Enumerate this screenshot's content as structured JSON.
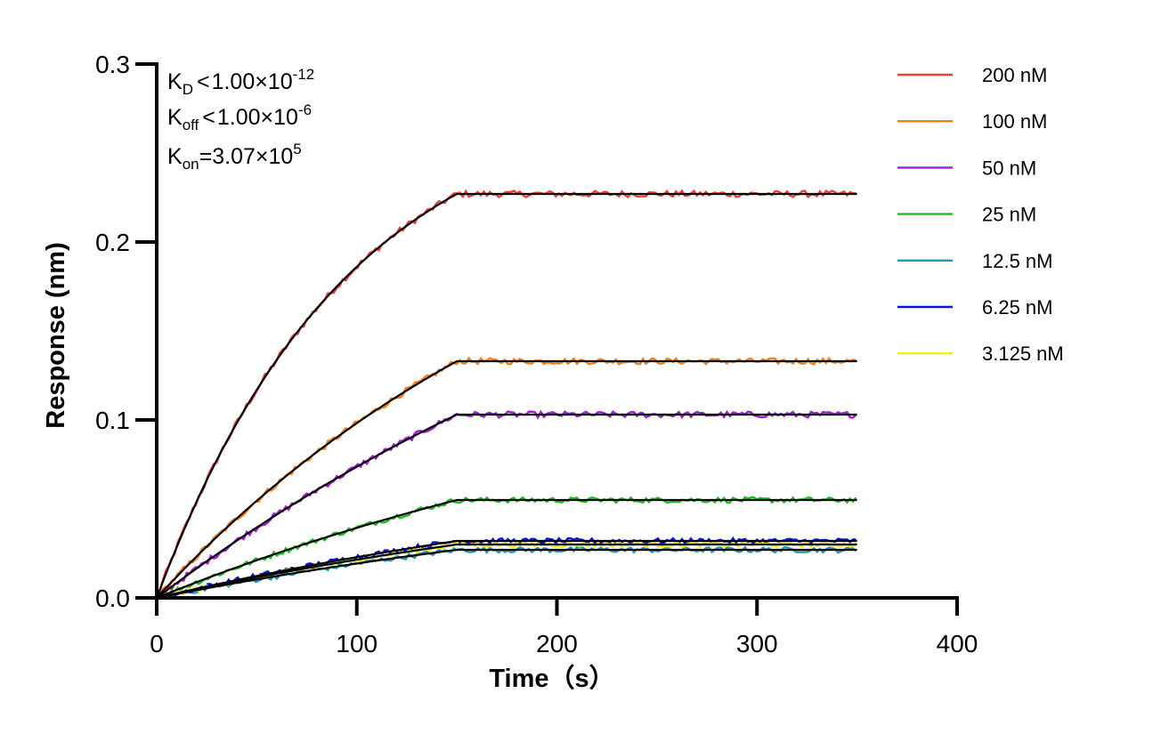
{
  "chart_data": {
    "type": "line",
    "xlabel": "Time（s）",
    "ylabel": "Response (nm)",
    "xlim": [
      0,
      400
    ],
    "ylim": [
      0,
      0.3
    ],
    "x_ticks": [
      "0",
      "100",
      "200",
      "300",
      "400"
    ],
    "y_ticks": [
      "0.0",
      "0.1",
      "0.2",
      "0.3"
    ],
    "grid": false,
    "legend_position": "top-right",
    "annotations": {
      "kd": {
        "base": "K",
        "sub": "D",
        "rel": "<",
        "mantissa": "1.00×10",
        "exp": "-12"
      },
      "koff": {
        "base": "K",
        "sub": "off",
        "rel": "<",
        "mantissa": "1.00×10",
        "exp": "-6"
      },
      "kon": {
        "base": "K",
        "sub": "on",
        "rel": "=",
        "mantissa": "3.07×10",
        "exp": "5"
      }
    },
    "association_end_s": 150,
    "end_s": 350,
    "fit_color": "#000000",
    "series": [
      {
        "name": "200 nM",
        "color": "#e8413c",
        "plateau": 0.227,
        "assoc_k": 0.0105
      },
      {
        "name": "100 nM",
        "color": "#f57f17",
        "plateau": 0.133,
        "assoc_k": 0.0045
      },
      {
        "name": "50 nM",
        "color": "#a21bd6",
        "plateau": 0.103,
        "assoc_k": 0.003
      },
      {
        "name": "25 nM",
        "color": "#1cbf1c",
        "plateau": 0.055,
        "assoc_k": 0.003
      },
      {
        "name": "12.5 nM",
        "color": "#1a9cb0",
        "plateau": 0.027,
        "assoc_k": 0.003
      },
      {
        "name": "6.25 nM",
        "color": "#0a14d6",
        "plateau": 0.032,
        "assoc_k": 0.003
      },
      {
        "name": "3.125 nM",
        "color": "#f2ea1a",
        "plateau": 0.03,
        "assoc_k": 0.003
      }
    ]
  }
}
